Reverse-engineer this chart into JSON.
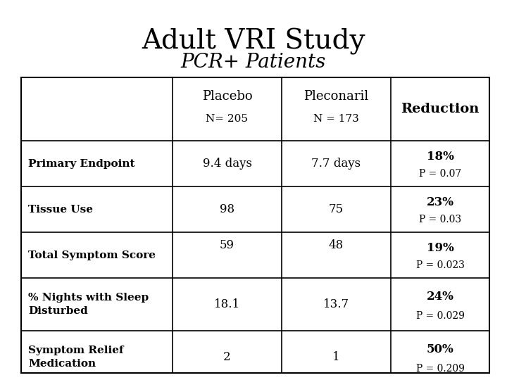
{
  "title": "Adult VRI Study",
  "subtitle": "PCR+ Patients",
  "title_fontsize": 28,
  "subtitle_fontsize": 20,
  "background_color": "#ffffff",
  "table": {
    "rows": [
      {
        "label": "Primary Endpoint",
        "placebo": "9.4 days",
        "pleconaril": "7.7 days",
        "reduction_pct": "18%",
        "reduction_p": "P = 0.07"
      },
      {
        "label": "Tissue Use",
        "placebo": "98",
        "pleconaril": "75",
        "reduction_pct": "23%",
        "reduction_p": "P = 0.03"
      },
      {
        "label": "Total Symptom Score",
        "placebo": "59",
        "pleconaril": "48",
        "reduction_pct": "19%",
        "reduction_p": "P = 0.023"
      },
      {
        "label": "% Nights with Sleep\nDisturbed",
        "placebo": "18.1",
        "pleconaril": "13.7",
        "reduction_pct": "24%",
        "reduction_p": "P = 0.029"
      },
      {
        "label": "Symptom Relief\nMedication",
        "placebo": "2",
        "pleconaril": "1",
        "reduction_pct": "50%",
        "reduction_p": "P = 0.209"
      }
    ]
  }
}
